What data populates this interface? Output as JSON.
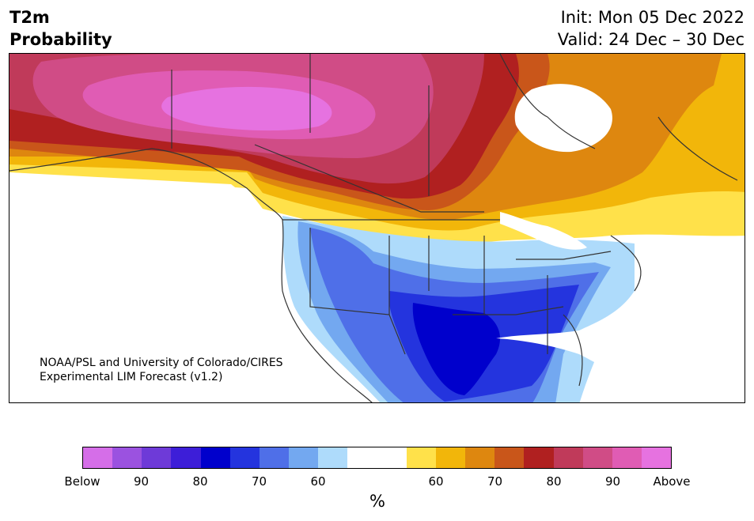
{
  "header": {
    "title_line1": "T2m",
    "title_line2": "Probability",
    "init": "Init: Mon 05 Dec 2022",
    "valid": "Valid: 24 Dec – 30 Dec"
  },
  "map": {
    "credit_line1": "NOAA/PSL and University of Colorado/CIRES",
    "credit_line2": "Experimental LIM Forecast (v1.2)"
  },
  "colorbar": {
    "colors": [
      "#d56ee8",
      "#9b52e0",
      "#6e3ad8",
      "#3d1ed8",
      "#0000cc",
      "#2434de",
      "#4f6fe8",
      "#73a8f0",
      "#aedbfb",
      "#ffffff",
      "#ffffff",
      "#ffe14a",
      "#f2b60a",
      "#de870f",
      "#c9561a",
      "#b02020",
      "#c03a5a",
      "#d04c86",
      "#e05cb4",
      "#e672e0"
    ],
    "tick_labels": [
      "Below",
      "90",
      "80",
      "70",
      "60",
      "60",
      "70",
      "80",
      "90",
      "Above"
    ],
    "unit": "%"
  }
}
